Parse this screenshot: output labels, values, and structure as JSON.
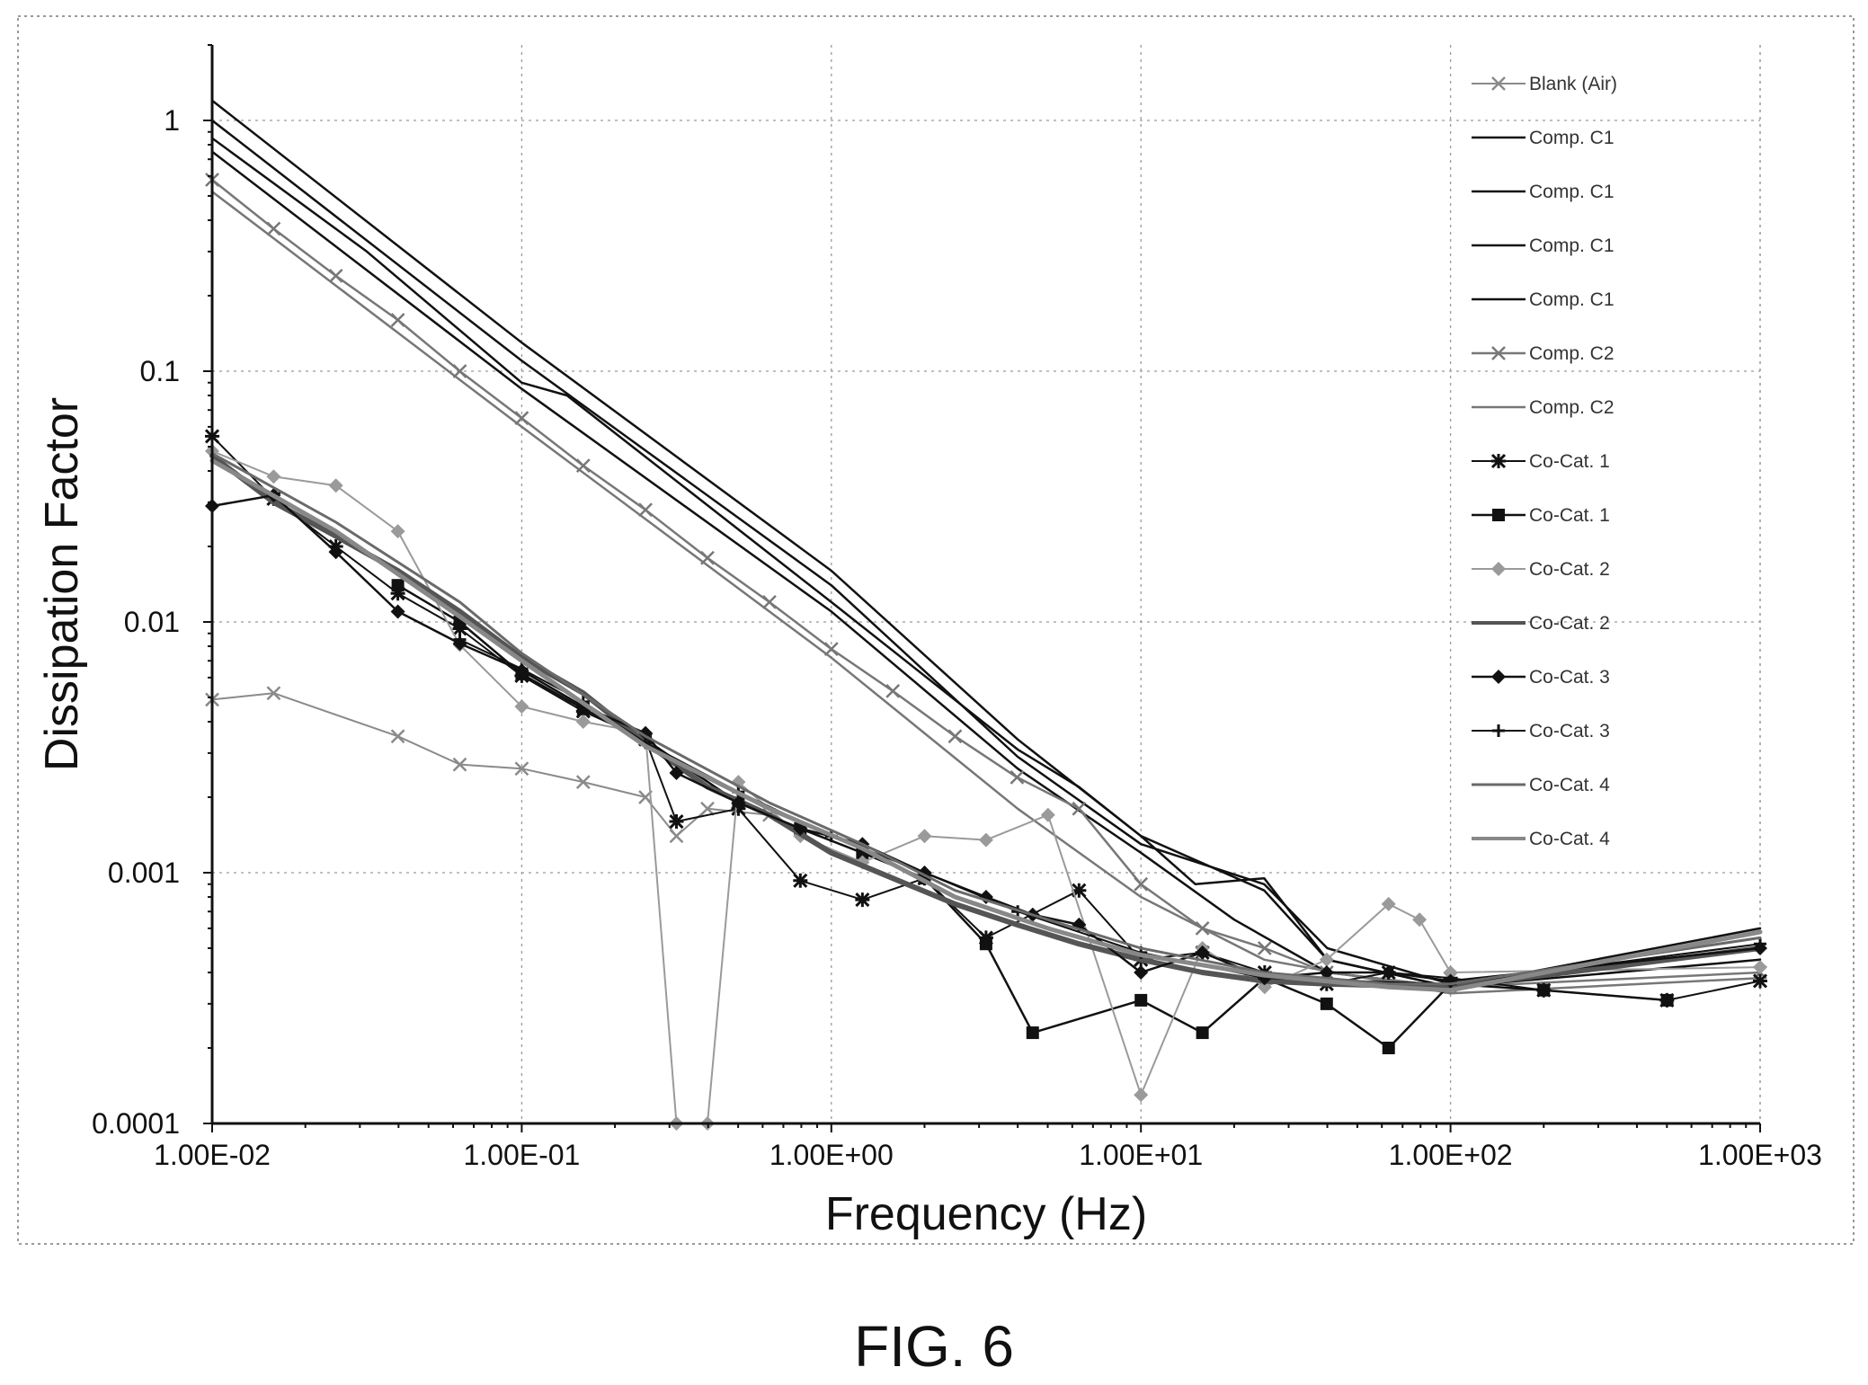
{
  "caption": "FIG. 6",
  "chart_data": {
    "type": "line",
    "title": "",
    "xlabel": "Frequency (Hz)",
    "ylabel": "Dissipation Factor",
    "x_scale": "log",
    "y_scale": "log",
    "xlim": [
      0.01,
      1000
    ],
    "ylim": [
      0.0001,
      2
    ],
    "x_ticks": [
      0.01,
      0.1,
      1,
      10,
      100,
      1000
    ],
    "x_tick_labels": [
      "1.00E-02",
      "1.00E-01",
      "1.00E+00",
      "1.00E+01",
      "1.00E+02",
      "1.00E+03"
    ],
    "y_ticks": [
      0.0001,
      0.001,
      0.01,
      0.1,
      1
    ],
    "y_tick_labels": [
      "0.0001",
      "0.001",
      "0.01",
      "0.1",
      "1"
    ],
    "grid": true,
    "legend_position": "right",
    "series": [
      {
        "name": "Blank (Air)",
        "color": "#8a8a8a",
        "width": 2,
        "marker": "x",
        "points": [
          [
            0.01,
            0.0049
          ],
          [
            0.0158,
            0.0052
          ],
          [
            0.0398,
            0.0035
          ],
          [
            0.0631,
            0.0027
          ],
          [
            0.1,
            0.0026
          ],
          [
            0.158,
            0.0023
          ],
          [
            0.251,
            0.002
          ],
          [
            0.316,
            0.0014
          ],
          [
            0.398,
            0.0018
          ],
          [
            0.631,
            0.0017
          ]
        ]
      },
      {
        "name": "Comp. C1",
        "color": "#111111",
        "width": 2.5,
        "marker": "none",
        "points": [
          [
            0.01,
            1.2
          ],
          [
            0.1,
            0.13
          ],
          [
            1,
            0.016
          ],
          [
            4,
            0.0034
          ],
          [
            10,
            0.0014
          ],
          [
            25,
            0.00085
          ],
          [
            40,
            0.00045
          ],
          [
            100,
            0.00035
          ],
          [
            1000,
            0.0006
          ]
        ]
      },
      {
        "name": "Comp. C1",
        "color": "#111111",
        "width": 2.5,
        "marker": "none",
        "points": [
          [
            0.01,
            1.0
          ],
          [
            0.1,
            0.11
          ],
          [
            1,
            0.014
          ],
          [
            4,
            0.0029
          ],
          [
            10,
            0.0013
          ],
          [
            25,
            0.0009
          ],
          [
            40,
            0.0005
          ],
          [
            100,
            0.00036
          ],
          [
            1000,
            0.00055
          ]
        ]
      },
      {
        "name": "Comp. C1",
        "color": "#111111",
        "width": 2.5,
        "marker": "none",
        "points": [
          [
            0.01,
            0.85
          ],
          [
            0.0316,
            0.3
          ],
          [
            0.1,
            0.09
          ],
          [
            0.14,
            0.08
          ],
          [
            1,
            0.012
          ],
          [
            4,
            0.0031
          ],
          [
            6.3,
            0.0022
          ],
          [
            10,
            0.0014
          ],
          [
            15,
            0.0009
          ],
          [
            25,
            0.00095
          ],
          [
            40,
            0.00045
          ],
          [
            100,
            0.00035
          ],
          [
            1000,
            0.0005
          ]
        ]
      },
      {
        "name": "Comp. C1",
        "color": "#111111",
        "width": 2.5,
        "marker": "none",
        "points": [
          [
            0.01,
            0.75
          ],
          [
            0.1,
            0.085
          ],
          [
            1,
            0.011
          ],
          [
            4,
            0.0026
          ],
          [
            10,
            0.0012
          ],
          [
            20,
            0.00065
          ],
          [
            40,
            0.0004
          ],
          [
            100,
            0.00035
          ],
          [
            1000,
            0.00045
          ]
        ]
      },
      {
        "name": "Comp. C2",
        "color": "#777777",
        "width": 2.5,
        "marker": "x",
        "points": [
          [
            0.01,
            0.58
          ],
          [
            0.0158,
            0.37
          ],
          [
            0.0251,
            0.24
          ],
          [
            0.0398,
            0.16
          ],
          [
            0.0631,
            0.1
          ],
          [
            0.1,
            0.065
          ],
          [
            0.158,
            0.042
          ],
          [
            0.251,
            0.028
          ],
          [
            0.398,
            0.018
          ],
          [
            0.631,
            0.012
          ],
          [
            1,
            0.0078
          ],
          [
            1.58,
            0.0053
          ],
          [
            2.51,
            0.0035
          ],
          [
            3.98,
            0.0024
          ],
          [
            6.31,
            0.0018
          ],
          [
            10,
            0.0009
          ],
          [
            15.8,
            0.0006
          ],
          [
            25.1,
            0.0005
          ],
          [
            39.8,
            0.0004
          ],
          [
            100,
            0.00035
          ],
          [
            1000,
            0.0004
          ]
        ]
      },
      {
        "name": "Comp. C2",
        "color": "#777777",
        "width": 2.5,
        "marker": "none",
        "points": [
          [
            0.01,
            0.52
          ],
          [
            0.1,
            0.06
          ],
          [
            1,
            0.0072
          ],
          [
            4,
            0.0018
          ],
          [
            10,
            0.0008
          ],
          [
            25,
            0.00045
          ],
          [
            100,
            0.00033
          ],
          [
            1000,
            0.00038
          ]
        ]
      },
      {
        "name": "Co-Cat. 1",
        "color": "#111111",
        "width": 2,
        "marker": "star",
        "points": [
          [
            0.01,
            0.055
          ],
          [
            0.0158,
            0.031
          ],
          [
            0.0251,
            0.02
          ],
          [
            0.0398,
            0.013
          ],
          [
            0.0631,
            0.0094
          ],
          [
            0.1,
            0.0061
          ],
          [
            0.158,
            0.0044
          ],
          [
            0.251,
            0.0034
          ],
          [
            0.316,
            0.0016
          ],
          [
            0.501,
            0.0018
          ],
          [
            0.794,
            0.00093
          ],
          [
            1.26,
            0.00078
          ],
          [
            2.0,
            0.00095
          ],
          [
            3.16,
            0.00055
          ],
          [
            6.31,
            0.00085
          ],
          [
            10,
            0.00045
          ],
          [
            15.8,
            0.00048
          ],
          [
            25.1,
            0.0004
          ],
          [
            39.8,
            0.00036
          ],
          [
            63.1,
            0.0004
          ],
          [
            100,
            0.00038
          ],
          [
            200,
            0.00034
          ],
          [
            500,
            0.00031
          ],
          [
            1000,
            0.00037
          ]
        ]
      },
      {
        "name": "Co-Cat. 1",
        "color": "#111111",
        "width": 2.5,
        "marker": "square",
        "points": [
          [
            0.0398,
            0.014
          ],
          [
            0.0631,
            0.01
          ],
          [
            0.1,
            0.0062
          ],
          [
            0.158,
            0.0045
          ],
          [
            0.251,
            0.0034
          ],
          [
            0.501,
            0.0019
          ],
          [
            0.794,
            0.0015
          ],
          [
            1.26,
            0.0012
          ],
          [
            2.0,
            0.00095
          ],
          [
            3.16,
            0.00052
          ],
          [
            4.47,
            0.00023
          ],
          [
            10,
            0.00031
          ],
          [
            15.8,
            0.00023
          ],
          [
            25.1,
            0.00038
          ],
          [
            39.8,
            0.0003
          ],
          [
            63.1,
            0.0002
          ],
          [
            100,
            0.00036
          ],
          [
            200,
            0.00034
          ],
          [
            501,
            0.00031
          ]
        ]
      },
      {
        "name": "Co-Cat. 2",
        "color": "#9a9a9a",
        "width": 2,
        "marker": "diamond",
        "points": [
          [
            0.01,
            0.048
          ],
          [
            0.0158,
            0.038
          ],
          [
            0.0251,
            0.035
          ],
          [
            0.0398,
            0.023
          ],
          [
            0.0631,
            0.0081
          ],
          [
            0.1,
            0.0046
          ],
          [
            0.158,
            0.004
          ],
          [
            0.251,
            0.0036
          ],
          [
            0.316,
            0.0001
          ],
          [
            0.398,
            0.0001
          ],
          [
            0.501,
            0.0023
          ],
          [
            0.794,
            0.0014
          ],
          [
            1.26,
            0.0011
          ],
          [
            2.0,
            0.0014
          ],
          [
            3.16,
            0.00135
          ],
          [
            5.01,
            0.0017
          ],
          [
            10,
            0.00013
          ],
          [
            15.8,
            0.0005
          ],
          [
            25.1,
            0.00035
          ],
          [
            39.8,
            0.00045
          ],
          [
            63.1,
            0.00075
          ],
          [
            79.4,
            0.00065
          ],
          [
            100,
            0.0004
          ],
          [
            1000,
            0.00042
          ]
        ]
      },
      {
        "name": "Co-Cat. 2",
        "color": "#555555",
        "width": 6,
        "marker": "none",
        "points": [
          [
            0.01,
            0.046
          ],
          [
            0.0158,
            0.03
          ],
          [
            0.0251,
            0.022
          ],
          [
            0.0398,
            0.016
          ],
          [
            0.0631,
            0.011
          ],
          [
            0.1,
            0.0072
          ],
          [
            0.158,
            0.0052
          ],
          [
            0.251,
            0.0033
          ],
          [
            0.398,
            0.0022
          ],
          [
            0.631,
            0.0017
          ],
          [
            1,
            0.0012
          ],
          [
            1.58,
            0.00095
          ],
          [
            2.51,
            0.00075
          ],
          [
            3.98,
            0.00062
          ],
          [
            6.31,
            0.00052
          ],
          [
            10,
            0.00045
          ],
          [
            15.8,
            0.0004
          ],
          [
            25.1,
            0.00037
          ],
          [
            39.8,
            0.00036
          ],
          [
            100,
            0.00035
          ],
          [
            1000,
            0.0005
          ]
        ]
      },
      {
        "name": "Co-Cat. 3",
        "color": "#111111",
        "width": 2.5,
        "marker": "diamond",
        "points": [
          [
            0.01,
            0.029
          ],
          [
            0.0158,
            0.032
          ],
          [
            0.0251,
            0.019
          ],
          [
            0.0398,
            0.011
          ],
          [
            0.0631,
            0.0082
          ],
          [
            0.1,
            0.0064
          ],
          [
            0.158,
            0.0046
          ],
          [
            0.251,
            0.0036
          ],
          [
            0.316,
            0.0025
          ],
          [
            0.501,
            0.0019
          ],
          [
            0.794,
            0.0015
          ],
          [
            1.26,
            0.0013
          ],
          [
            2.0,
            0.001
          ],
          [
            3.16,
            0.0008
          ],
          [
            4.47,
            0.00068
          ],
          [
            6.31,
            0.00062
          ],
          [
            10,
            0.0004
          ],
          [
            15.8,
            0.00048
          ],
          [
            25.1,
            0.00038
          ],
          [
            39.8,
            0.0004
          ],
          [
            63.1,
            0.0004
          ],
          [
            100,
            0.00037
          ],
          [
            1000,
            0.0005
          ]
        ]
      },
      {
        "name": "Co-Cat. 3",
        "color": "#111111",
        "width": 2,
        "marker": "plus",
        "points": [
          [
            0.0631,
            0.0085
          ],
          [
            0.1,
            0.0065
          ],
          [
            0.158,
            0.0048
          ],
          [
            0.251,
            0.0033
          ],
          [
            0.501,
            0.0021
          ],
          [
            1,
            0.0014
          ],
          [
            2,
            0.001
          ],
          [
            4,
            0.0007
          ],
          [
            10,
            0.00048
          ],
          [
            25,
            0.00038
          ],
          [
            100,
            0.00036
          ],
          [
            1000,
            0.00052
          ]
        ]
      },
      {
        "name": "Co-Cat. 4",
        "color": "#6a6a6a",
        "width": 3,
        "marker": "none",
        "points": [
          [
            0.01,
            0.047
          ],
          [
            0.0251,
            0.025
          ],
          [
            0.0631,
            0.012
          ],
          [
            0.1,
            0.0075
          ],
          [
            0.251,
            0.0035
          ],
          [
            0.631,
            0.0019
          ],
          [
            1.26,
            0.0013
          ],
          [
            2.51,
            0.00085
          ],
          [
            5,
            0.00065
          ],
          [
            10,
            0.0005
          ],
          [
            25,
            0.0004
          ],
          [
            63,
            0.00036
          ],
          [
            100,
            0.00036
          ],
          [
            1000,
            0.00055
          ]
        ]
      },
      {
        "name": "Co-Cat. 4",
        "color": "#888888",
        "width": 5,
        "marker": "none",
        "points": [
          [
            0.01,
            0.044
          ],
          [
            0.0251,
            0.023
          ],
          [
            0.0631,
            0.0105
          ],
          [
            0.1,
            0.007
          ],
          [
            0.251,
            0.0032
          ],
          [
            0.631,
            0.0018
          ],
          [
            1.26,
            0.00125
          ],
          [
            2.51,
            0.0008
          ],
          [
            5,
            0.0006
          ],
          [
            10,
            0.00047
          ],
          [
            25,
            0.00039
          ],
          [
            63,
            0.00035
          ],
          [
            100,
            0.00034
          ],
          [
            1000,
            0.00058
          ]
        ]
      }
    ]
  }
}
